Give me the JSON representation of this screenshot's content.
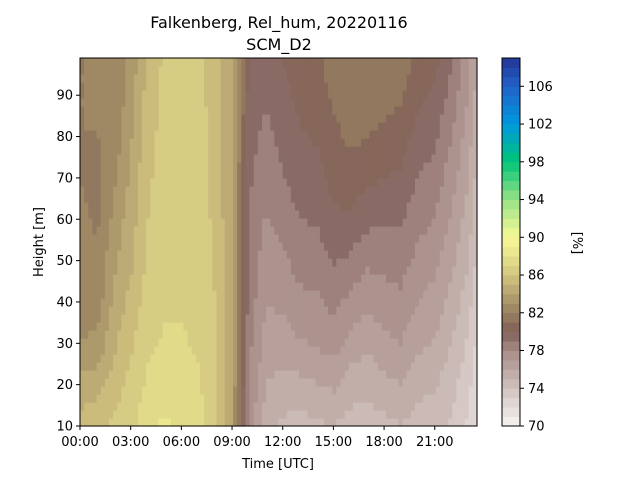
{
  "chart_data": {
    "type": "heatmap",
    "title": "Falkenberg, Rel_hum, 20220116",
    "subtitle": "SCM_D2",
    "xlabel": "Time [UTC]",
    "ylabel": "Height [m]",
    "xticks": [
      "00:00",
      "03:00",
      "06:00",
      "09:00",
      "12:00",
      "15:00",
      "18:00",
      "21:00"
    ],
    "xlim_hours": [
      0,
      23.5
    ],
    "yticks": [
      10,
      20,
      30,
      40,
      50,
      60,
      70,
      80,
      90
    ],
    "ylim": [
      10,
      99
    ],
    "colorbar": {
      "label": "[%]",
      "range": [
        70,
        109
      ],
      "ticks": [
        70,
        74,
        78,
        82,
        86,
        90,
        94,
        98,
        102,
        106
      ],
      "levels": [
        70,
        71,
        72,
        73,
        74,
        75,
        76,
        77,
        78,
        79,
        80,
        81,
        82,
        83,
        84,
        85,
        86,
        87,
        88,
        89,
        90,
        91,
        92,
        93,
        94,
        95,
        96,
        97,
        98,
        99,
        100,
        101,
        102,
        103,
        104,
        105,
        106,
        107,
        108,
        109
      ]
    },
    "hours": [
      0,
      1,
      2,
      3,
      4,
      5,
      6,
      7,
      8,
      9,
      10,
      11,
      12,
      13,
      14,
      15,
      16,
      17,
      18,
      19,
      20,
      21,
      22,
      23,
      23.5
    ],
    "heights": [
      10,
      20,
      30,
      40,
      50,
      60,
      70,
      80,
      90,
      99
    ],
    "values": [
      [
        85.5,
        85.8,
        86.2,
        86.8,
        87.6,
        88.2,
        87.9,
        87.4,
        86.4,
        84.0,
        77.5,
        75.5,
        74.8,
        74.6,
        74.8,
        75.0,
        74.6,
        74.4,
        74.7,
        74.9,
        74.5,
        74.3,
        73.8,
        72.8,
        71.8
      ],
      [
        84.3,
        84.6,
        85.5,
        86.3,
        87.2,
        87.5,
        87.4,
        87.1,
        86.3,
        84.1,
        78.0,
        76.0,
        75.6,
        75.7,
        75.9,
        76.2,
        75.5,
        75.3,
        75.7,
        76.0,
        75.4,
        75.1,
        74.4,
        73.3,
        72.3
      ],
      [
        83.0,
        83.3,
        84.8,
        85.8,
        86.8,
        87.1,
        87.1,
        86.9,
        86.1,
        84.1,
        78.3,
        76.6,
        76.5,
        76.9,
        77.1,
        77.5,
        76.6,
        76.2,
        76.7,
        77.0,
        76.2,
        75.9,
        75.0,
        73.8,
        72.8
      ],
      [
        82.6,
        82.4,
        84.3,
        85.3,
        86.5,
        86.9,
        86.9,
        86.7,
        86.0,
        84.0,
        78.6,
        77.0,
        77.2,
        77.7,
        77.8,
        78.3,
        77.7,
        77.2,
        77.5,
        77.7,
        77.0,
        76.6,
        75.6,
        74.4,
        73.3
      ],
      [
        82.5,
        82.1,
        83.8,
        84.8,
        86.2,
        86.7,
        86.8,
        86.6,
        85.9,
        84.0,
        78.8,
        77.4,
        77.8,
        78.4,
        78.5,
        79.1,
        78.8,
        78.2,
        78.3,
        78.5,
        77.7,
        77.3,
        76.3,
        75.0,
        73.8
      ],
      [
        82.3,
        81.8,
        83.3,
        84.5,
        86.0,
        86.6,
        86.7,
        86.5,
        85.8,
        84.0,
        79.0,
        77.9,
        78.4,
        79.0,
        79.1,
        79.8,
        79.8,
        79.3,
        79.1,
        79.1,
        78.4,
        77.9,
        76.9,
        75.5,
        74.3
      ],
      [
        82.0,
        81.6,
        82.8,
        84.2,
        85.8,
        86.5,
        86.7,
        86.5,
        85.7,
        84.0,
        79.2,
        78.3,
        78.9,
        79.5,
        79.6,
        80.3,
        80.6,
        80.2,
        80.0,
        79.8,
        79.0,
        78.6,
        77.4,
        76.0,
        74.7
      ],
      [
        82.0,
        82.0,
        82.3,
        83.9,
        85.6,
        86.4,
        86.6,
        86.5,
        85.6,
        84.0,
        79.4,
        78.7,
        79.3,
        79.9,
        80.1,
        80.7,
        81.2,
        81.0,
        80.7,
        80.5,
        79.6,
        79.2,
        78.0,
        76.5,
        75.2
      ],
      [
        82.0,
        82.0,
        82.0,
        83.6,
        85.4,
        86.3,
        86.6,
        86.4,
        85.5,
        84.0,
        79.6,
        79.1,
        79.6,
        80.3,
        80.5,
        81.2,
        81.7,
        81.6,
        81.5,
        81.1,
        80.2,
        79.8,
        78.6,
        77.0,
        75.6
      ],
      [
        82.0,
        82.0,
        82.0,
        83.3,
        85.2,
        86.2,
        86.5,
        86.4,
        85.5,
        84.0,
        79.8,
        79.4,
        80.0,
        80.6,
        80.8,
        81.5,
        82.0,
        81.9,
        81.9,
        81.6,
        80.8,
        80.3,
        79.1,
        77.4,
        76.0
      ]
    ]
  }
}
